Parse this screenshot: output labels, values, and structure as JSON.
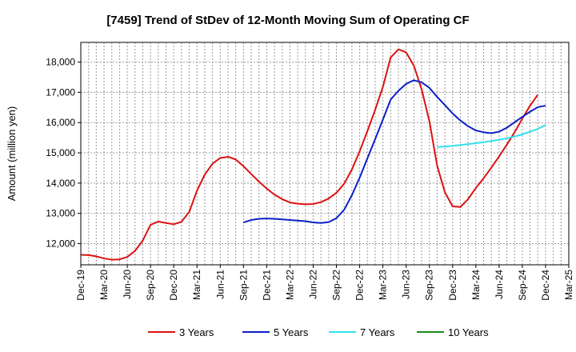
{
  "chart_data": {
    "type": "line",
    "title": "[7459]  Trend of StDev of 12-Month Moving Sum of Operating CF",
    "ylabel": "Amount (million yen)",
    "xlabel": "",
    "ylim": [
      11300,
      18650
    ],
    "yticks": [
      12000,
      13000,
      14000,
      15000,
      16000,
      17000,
      18000
    ],
    "ytick_labels": [
      "12,000",
      "13,000",
      "14,000",
      "15,000",
      "16,000",
      "17,000",
      "18,000"
    ],
    "x_tick_labels": [
      "Dec-19",
      "Mar-20",
      "Jun-20",
      "Sep-20",
      "Dec-20",
      "Mar-21",
      "Jun-21",
      "Sep-21",
      "Dec-21",
      "Mar-22",
      "Jun-22",
      "Sep-22",
      "Dec-22",
      "Mar-23",
      "Jun-23",
      "Sep-23",
      "Dec-23",
      "Mar-24",
      "Jun-24",
      "Sep-24",
      "Dec-24",
      "Mar-25"
    ],
    "x_month_index_range": [
      0,
      63
    ],
    "grid": true,
    "legend_position": "bottom",
    "series": [
      {
        "name": "3 Years",
        "color": "#dd1111",
        "start_index": 0,
        "values": [
          11630,
          11620,
          11580,
          11510,
          11470,
          11480,
          11560,
          11760,
          12100,
          12620,
          12730,
          12680,
          12640,
          12720,
          13050,
          13750,
          14280,
          14640,
          14830,
          14870,
          14780,
          14560,
          14300,
          14050,
          13820,
          13620,
          13470,
          13360,
          13320,
          13300,
          13310,
          13370,
          13490,
          13680,
          13980,
          14450,
          15050,
          15720,
          16420,
          17180,
          18150,
          18420,
          18320,
          17880,
          17100,
          16050,
          14580,
          13700,
          13230,
          13210,
          13470,
          13840,
          14160,
          14510,
          14880,
          15270,
          15680,
          16130,
          16560,
          16920
        ]
      },
      {
        "name": "5 Years",
        "color": "#0a1fc8",
        "start_index": 21,
        "values": [
          12700,
          12780,
          12820,
          12830,
          12820,
          12800,
          12780,
          12760,
          12740,
          12700,
          12680,
          12710,
          12840,
          13120,
          13600,
          14180,
          14820,
          15450,
          16100,
          16760,
          17050,
          17280,
          17400,
          17330,
          17150,
          16850,
          16580,
          16300,
          16070,
          15880,
          15740,
          15680,
          15650,
          15700,
          15830,
          16010,
          16190,
          16360,
          16510,
          16560
        ]
      },
      {
        "name": "7 Years",
        "color": "#33e0ee",
        "start_index": 46,
        "values": [
          15190,
          15210,
          15230,
          15260,
          15290,
          15320,
          15350,
          15390,
          15430,
          15480,
          15540,
          15610,
          15700,
          15790,
          15920
        ]
      },
      {
        "name": "10 Years",
        "color": "#1a8a1a",
        "start_index": 0,
        "values": []
      }
    ]
  }
}
